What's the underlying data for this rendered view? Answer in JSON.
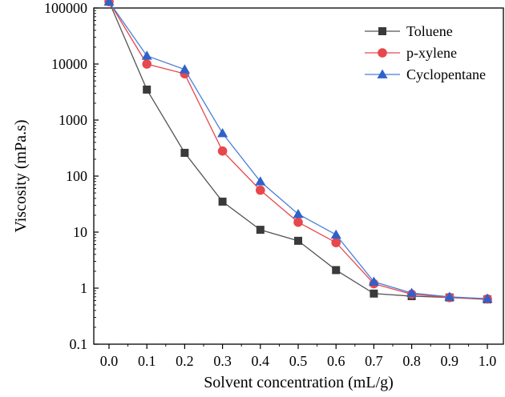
{
  "chart_data": {
    "type": "line",
    "title": "",
    "xlabel": "Solvent concentration (mL/g)",
    "ylabel": "Viscosity (mPa.s)",
    "x": [
      0.0,
      0.1,
      0.2,
      0.3,
      0.4,
      0.5,
      0.6,
      0.7,
      0.8,
      0.9,
      1.0
    ],
    "x_tick_labels": [
      "0.0",
      "0.1",
      "0.2",
      "0.3",
      "0.4",
      "0.5",
      "0.6",
      "0.7",
      "0.8",
      "0.9",
      "1.0"
    ],
    "y_scale": "log",
    "ylim": [
      0.1,
      100000
    ],
    "y_ticks": [
      0.1,
      1,
      10,
      100,
      1000,
      10000,
      100000
    ],
    "y_tick_labels": [
      "0.1",
      "1",
      "10",
      "100",
      "1000",
      "10000",
      "100000"
    ],
    "grid": false,
    "legend_position": "top-right",
    "series": [
      {
        "name": "Toluene",
        "marker": "square",
        "color": "#3a3a3a",
        "line_color": "#555555",
        "values": [
          130000,
          3500,
          260,
          35,
          11,
          7,
          2.1,
          0.8,
          0.72,
          0.68,
          0.63
        ]
      },
      {
        "name": "p-xylene",
        "marker": "circle",
        "color": "#e8474c",
        "line_color": "#e8474c",
        "values": [
          130000,
          10000,
          6700,
          280,
          56,
          15,
          6.5,
          1.2,
          0.78,
          0.68,
          0.64
        ]
      },
      {
        "name": "Cyclopentane",
        "marker": "triangle",
        "color": "#2f62c9",
        "line_color": "#4a7fd6",
        "values": [
          130000,
          14000,
          8000,
          580,
          80,
          21,
          9,
          1.3,
          0.82,
          0.7,
          0.65
        ]
      }
    ]
  }
}
